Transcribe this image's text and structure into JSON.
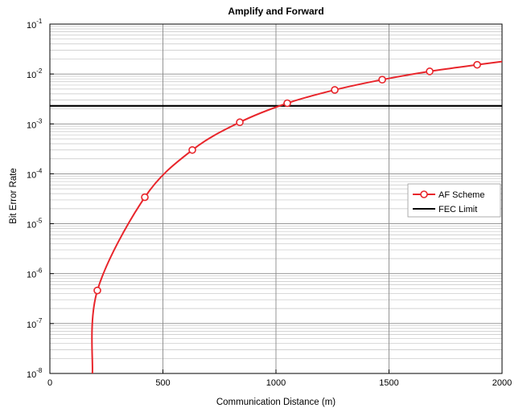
{
  "chart_data": {
    "type": "line",
    "title": "Amplify and Forward",
    "xlabel": "Communication Distance (m)",
    "ylabel": "Bit Error Rate",
    "xlim": [
      0,
      2000
    ],
    "ylim": [
      1e-08,
      0.1
    ],
    "yscale": "log",
    "grid": true,
    "legend_position": "right",
    "x_ticks": [
      "0",
      "500",
      "1000",
      "1500",
      "2000"
    ],
    "y_ticks": [
      {
        "base": "10",
        "exp": "-8"
      },
      {
        "base": "10",
        "exp": "-7"
      },
      {
        "base": "10",
        "exp": "-6"
      },
      {
        "base": "10",
        "exp": "-5"
      },
      {
        "base": "10",
        "exp": "-4"
      },
      {
        "base": "10",
        "exp": "-3"
      },
      {
        "base": "10",
        "exp": "-2"
      },
      {
        "base": "10",
        "exp": "-1"
      }
    ],
    "series": [
      {
        "name": "AF Scheme",
        "color": "#e8252b",
        "marker": "circle",
        "x": [
          188,
          210,
          420,
          630,
          840,
          1050,
          1260,
          1470,
          1680,
          1890,
          2000
        ],
        "y": [
          1e-08,
          4.6e-07,
          3.4e-05,
          0.0003,
          0.00108,
          0.0026,
          0.0048,
          0.0077,
          0.0113,
          0.0153,
          0.0178
        ],
        "marker_x": [
          210,
          420,
          630,
          840,
          1050,
          1260,
          1470,
          1680,
          1890
        ],
        "marker_y": [
          4.6e-07,
          3.4e-05,
          0.0003,
          0.00108,
          0.0026,
          0.0048,
          0.0077,
          0.0113,
          0.0153
        ]
      },
      {
        "name": "FEC Limit",
        "color": "#000000",
        "marker": "none",
        "x": [
          0,
          2000
        ],
        "y": [
          0.0023,
          0.0023
        ]
      }
    ]
  }
}
